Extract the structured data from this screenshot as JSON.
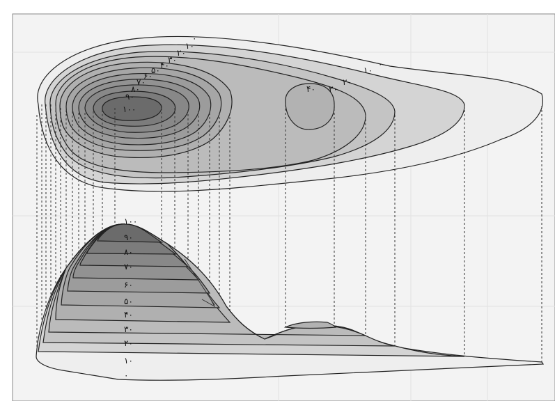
{
  "colors": {
    "frame": "#f2f2f2",
    "outline": "#222222",
    "leader": "#333333",
    "levels": [
      "#eeeeee",
      "#dddddd",
      "#d2d2d2",
      "#c6c6c6",
      "#bbbbbb",
      "#b0b0b0",
      "#a6a6a6",
      "#9a9a9a",
      "#8e8e8e",
      "#7f7f7f",
      "#6b6b6b"
    ]
  },
  "plan_labels": {
    "main_peak": [
      "۰",
      "۱۰",
      "۲۰",
      "۳۰",
      "۴۰",
      "۵۰",
      "۶۰",
      "۷۰",
      "۸۰",
      "۹۰",
      "۱۰۰"
    ],
    "east": [
      "۱۰",
      "۲۰",
      "۳۰",
      "۴۰"
    ],
    "outer": "۰"
  },
  "profile_labels": [
    "۰",
    "۱۰",
    "۲۰",
    "۳۰",
    "۴۰",
    "۵۰",
    "۶۰",
    "۷۰",
    "۸۰",
    "۹۰",
    "۱۰۰"
  ]
}
